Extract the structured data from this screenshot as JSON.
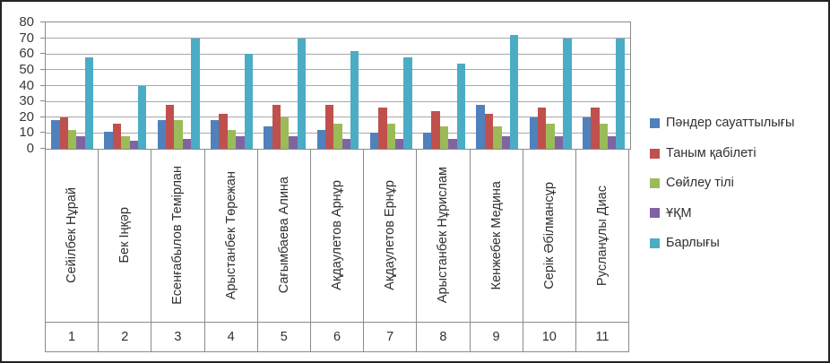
{
  "chart_data": {
    "type": "bar",
    "title": "",
    "categories": [
      "Сейілбек Нұрай",
      "Бек Іңқәр",
      "Есенғабылов Темірлан",
      "Арыстанбек Төрежан",
      "Сағымбаева Алина",
      "Ақдаулетов Арнұр",
      "Ақдаулетов Ернұр",
      "Арыстанбек Нұрислам",
      "Кенжебек Медина",
      "Серік Әбілмансұр",
      "Русланұлы Диас"
    ],
    "category_numbers": [
      "1",
      "2",
      "3",
      "4",
      "5",
      "6",
      "7",
      "8",
      "9",
      "10",
      "11"
    ],
    "series": [
      {
        "name": "Пәндер сауаттылығы",
        "color": "#4F81BD",
        "values": [
          18,
          11,
          18,
          18,
          14,
          12,
          10,
          10,
          28,
          20,
          20
        ]
      },
      {
        "name": "Таным қабілеті",
        "color": "#C0504D",
        "values": [
          20,
          16,
          28,
          22,
          28,
          28,
          26,
          24,
          22,
          26,
          26
        ]
      },
      {
        "name": "Сөйлеу тілі",
        "color": "#9BBB59",
        "values": [
          12,
          8,
          18,
          12,
          20,
          16,
          16,
          14,
          14,
          16,
          16
        ]
      },
      {
        "name": "ҰҚМ",
        "color": "#8064A2",
        "values": [
          8,
          5,
          6,
          8,
          8,
          6,
          6,
          6,
          8,
          8,
          8
        ]
      },
      {
        "name": "Барлығы",
        "color": "#4BACC6",
        "values": [
          58,
          40,
          70,
          60,
          70,
          62,
          58,
          54,
          72,
          70,
          70
        ]
      }
    ],
    "y_axis": {
      "min": 0,
      "max": 80,
      "step": 10,
      "tick_labels": [
        "0",
        "10",
        "20",
        "30",
        "40",
        "50",
        "60",
        "70",
        "80"
      ]
    },
    "grid": true,
    "legend_position": "right"
  },
  "colors": {
    "gridline": "#a8a8a8",
    "axis": "#8a8a8a",
    "text": "#303030",
    "frame_border": "#242424",
    "background": "#ffffff"
  }
}
